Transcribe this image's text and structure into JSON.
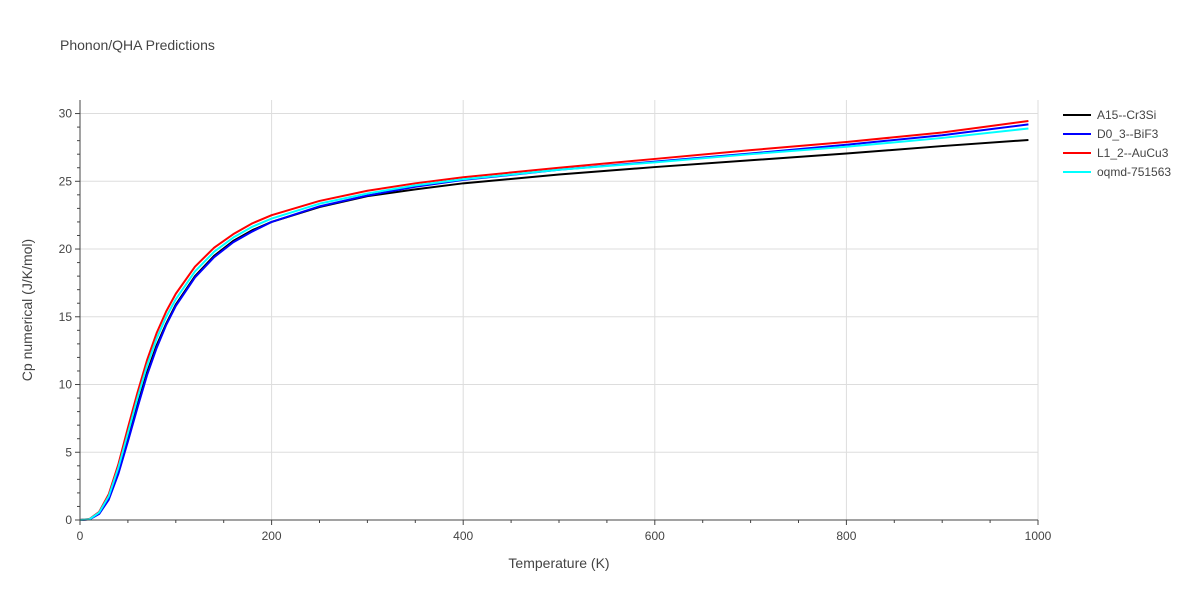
{
  "chart_data": {
    "type": "line",
    "title": "Phonon/QHA Predictions",
    "xlabel": "Temperature (K)",
    "ylabel": "Cp numerical (J/K/mol)",
    "xlim": [
      0,
      1000
    ],
    "ylim": [
      0,
      31
    ],
    "xticks": [
      0,
      200,
      400,
      600,
      800,
      1000
    ],
    "yticks": [
      0,
      5,
      10,
      15,
      20,
      25,
      30
    ],
    "grid": true,
    "legend_position": "top-right",
    "series": [
      {
        "name": "A15--Cr3Si",
        "color": "#000000",
        "x": [
          0,
          10,
          20,
          30,
          40,
          50,
          60,
          70,
          80,
          90,
          100,
          120,
          140,
          160,
          180,
          200,
          250,
          300,
          350,
          400,
          500,
          600,
          700,
          800,
          900,
          990
        ],
        "y": [
          0,
          0.05,
          0.5,
          1.6,
          3.6,
          6.0,
          8.5,
          10.9,
          12.9,
          14.5,
          15.9,
          18.0,
          19.5,
          20.6,
          21.4,
          22.0,
          23.1,
          23.9,
          24.4,
          24.85,
          25.5,
          26.05,
          26.55,
          27.05,
          27.6,
          28.05
        ]
      },
      {
        "name": "D0_3--BiF3",
        "color": "#0000ff",
        "x": [
          0,
          10,
          20,
          30,
          40,
          50,
          60,
          70,
          80,
          90,
          100,
          120,
          140,
          160,
          180,
          200,
          250,
          300,
          350,
          400,
          500,
          600,
          700,
          800,
          900,
          990
        ],
        "y": [
          0,
          0.05,
          0.45,
          1.5,
          3.4,
          5.8,
          8.3,
          10.7,
          12.7,
          14.4,
          15.8,
          17.9,
          19.4,
          20.5,
          21.3,
          22.0,
          23.15,
          23.95,
          24.6,
          25.1,
          25.85,
          26.45,
          27.05,
          27.7,
          28.4,
          29.2
        ]
      },
      {
        "name": "L1_2--AuCu3",
        "color": "#ff0000",
        "x": [
          0,
          10,
          20,
          30,
          40,
          50,
          60,
          70,
          80,
          90,
          100,
          120,
          140,
          160,
          180,
          200,
          250,
          300,
          350,
          400,
          500,
          600,
          700,
          800,
          900,
          990
        ],
        "y": [
          0,
          0.08,
          0.6,
          1.9,
          4.1,
          6.8,
          9.4,
          11.8,
          13.8,
          15.4,
          16.7,
          18.7,
          20.1,
          21.1,
          21.9,
          22.5,
          23.55,
          24.3,
          24.85,
          25.3,
          26.0,
          26.65,
          27.3,
          27.9,
          28.6,
          29.45
        ]
      },
      {
        "name": "oqmd-751563",
        "color": "#00ffff",
        "x": [
          0,
          10,
          20,
          30,
          40,
          50,
          60,
          70,
          80,
          90,
          100,
          120,
          140,
          160,
          180,
          200,
          250,
          300,
          350,
          400,
          500,
          600,
          700,
          800,
          900,
          990
        ],
        "y": [
          0,
          0.06,
          0.55,
          1.75,
          3.85,
          6.4,
          9.0,
          11.4,
          13.4,
          15.0,
          16.3,
          18.35,
          19.8,
          20.85,
          21.65,
          22.25,
          23.35,
          24.1,
          24.7,
          25.15,
          25.85,
          26.4,
          27.0,
          27.55,
          28.2,
          28.9
        ]
      }
    ]
  }
}
